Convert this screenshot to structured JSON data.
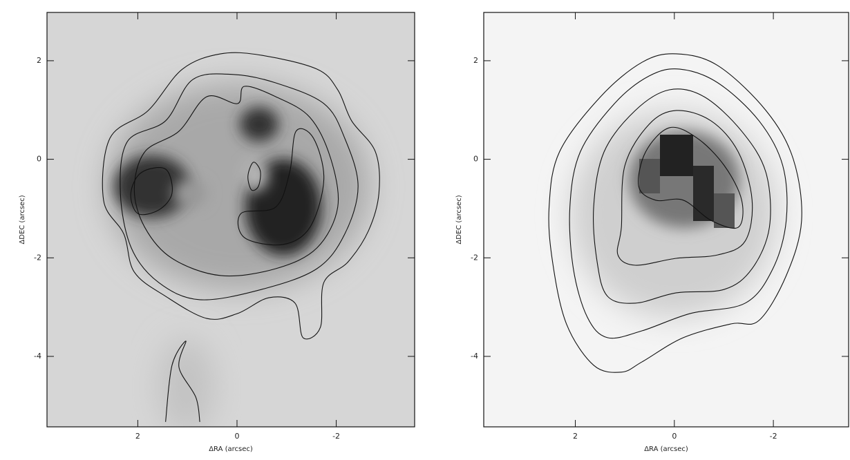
{
  "chart_data": [
    {
      "type": "contour",
      "x_label": "ΔRA (arcsec)",
      "y_label": "ΔDEC (arcsec)",
      "xlim": [
        3.83,
        -3.58
      ],
      "ylim": [
        -5.43,
        2.98
      ],
      "xticks": [
        2,
        0,
        -2
      ],
      "yticks": [
        -4,
        -2,
        0,
        2
      ],
      "color": "#111111",
      "contours": [
        {
          "x": [
            2.69,
            2.56,
            1.79,
            1.1,
            0.33,
            -0.5,
            -1.61,
            -2.03,
            -2.31,
            -2.79,
            -2.86,
            -2.65,
            -2.24,
            -1.75,
            -1.68,
            -1.33,
            -1.17,
            -0.64,
            -0.01,
            0.61,
            1.44,
            2.07,
            2.28
          ],
          "y": [
            -0.83,
            0.43,
            0.99,
            1.83,
            2.14,
            2.11,
            1.83,
            1.41,
            0.78,
            0.15,
            -0.69,
            -1.45,
            -2.08,
            -2.5,
            -3.41,
            -3.62,
            -2.92,
            -2.81,
            -3.13,
            -3.23,
            -2.78,
            -2.29,
            -1.52
          ]
        },
        {
          "x": [
            2.35,
            2.21,
            1.44,
            0.89,
            0.06,
            -0.78,
            -1.75,
            -2.17,
            -2.44,
            -2.17,
            -1.61,
            -0.5,
            0.75,
            1.58,
            2.13
          ],
          "y": [
            -0.69,
            0.36,
            0.78,
            1.62,
            1.72,
            1.55,
            1.13,
            0.43,
            -0.55,
            -1.52,
            -2.22,
            -2.64,
            -2.85,
            -2.5,
            -1.8
          ]
        },
        {
          "x": [
            2.07,
            1.86,
            1.17,
            0.61,
            -0.01,
            -0.15,
            -0.78,
            -1.47,
            -1.89,
            -2.03,
            -1.61,
            -0.78,
            0.33,
            1.31,
            1.86
          ],
          "y": [
            -0.62,
            0.15,
            0.57,
            1.27,
            1.13,
            1.48,
            1.27,
            0.85,
            0.01,
            -0.97,
            -1.8,
            -2.22,
            -2.36,
            -2.01,
            -1.38
          ]
        },
        {
          "x": [
            2.14,
            1.93,
            1.44,
            1.31,
            1.58,
            2.0
          ],
          "y": [
            -0.69,
            -0.27,
            -0.2,
            -0.69,
            -1.03,
            -1.1
          ]
        },
        {
          "x": [
            -0.08,
            -0.78,
            -1.06,
            -1.19,
            -1.54,
            -1.75,
            -1.47,
            -0.92,
            -0.15
          ],
          "y": [
            -1.1,
            -0.97,
            -0.27,
            0.57,
            0.43,
            -0.41,
            -1.38,
            -1.73,
            -1.59
          ]
        },
        {
          "x": [
            -0.22,
            -0.33,
            -0.47,
            -0.43,
            -0.29
          ],
          "y": [
            -0.34,
            -0.06,
            -0.24,
            -0.55,
            -0.62
          ]
        },
        {
          "x": [
            1.44,
            1.31,
            1.03,
            1.17,
            0.83,
            0.75
          ],
          "y": [
            -5.33,
            -4.18,
            -3.69,
            -4.22,
            -4.83,
            -5.33
          ],
          "closed": false
        }
      ]
    },
    {
      "type": "contour",
      "x_label": "ΔRA (arcsec)",
      "y_label": "ΔDEC (arcsec)",
      "xlim": [
        3.85,
        -3.52
      ],
      "ylim": [
        -5.43,
        2.98
      ],
      "xticks": [
        2,
        0,
        -2
      ],
      "yticks": [
        -4,
        -2,
        0,
        2
      ],
      "color": "#111111",
      "contours": [
        {
          "x": [
            2.53,
            2.32,
            1.49,
            0.65,
            -0.04,
            -0.88,
            -1.85,
            -2.4,
            -2.57,
            -2.26,
            -1.71,
            -1.15,
            -0.18,
            0.65,
            1.07,
            1.63,
            2.18,
            2.46
          ],
          "y": [
            -0.97,
            0.15,
            1.27,
            1.97,
            2.14,
            1.9,
            0.99,
            0.01,
            -1.24,
            -2.36,
            -3.27,
            -3.34,
            -3.62,
            -4.11,
            -4.32,
            -4.18,
            -3.34,
            -2.08
          ]
        },
        {
          "x": [
            2.11,
            1.9,
            1.21,
            0.51,
            -0.11,
            -0.88,
            -1.71,
            -2.19,
            -2.26,
            -1.99,
            -1.43,
            -0.32,
            0.65,
            1.35,
            1.76,
            2.04
          ],
          "y": [
            -0.97,
            0.15,
            1.13,
            1.69,
            1.83,
            1.55,
            0.78,
            -0.13,
            -1.24,
            -2.22,
            -2.92,
            -3.13,
            -3.48,
            -3.62,
            -3.2,
            -2.22
          ]
        },
        {
          "x": [
            1.63,
            1.42,
            0.79,
            0.1,
            -0.6,
            -1.36,
            -1.85,
            -1.92,
            -1.57,
            -1.01,
            -0.04,
            0.79,
            1.35,
            1.56
          ],
          "y": [
            -0.97,
            0.15,
            0.99,
            1.41,
            1.27,
            0.57,
            -0.27,
            -1.38,
            -2.22,
            -2.64,
            -2.71,
            -2.92,
            -2.78,
            -2.08
          ]
        },
        {
          "x": [
            1.07,
            1.0,
            0.51,
            -0.04,
            -0.74,
            -1.29,
            -1.57,
            -1.43,
            -0.88,
            -0.04,
            0.79,
            1.14
          ],
          "y": [
            -1.38,
            -0.13,
            0.71,
            0.99,
            0.78,
            0.15,
            -0.83,
            -1.66,
            -1.94,
            -2.01,
            -2.15,
            -1.94
          ]
        },
        {
          "x": [
            0.72,
            0.58,
            0.1,
            -0.46,
            -1.01,
            -1.36,
            -1.29,
            -0.74,
            -0.18,
            0.38
          ],
          "y": [
            -0.55,
            0.15,
            0.64,
            0.43,
            -0.13,
            -0.83,
            -1.38,
            -1.24,
            -0.83,
            -0.83
          ]
        }
      ]
    }
  ]
}
